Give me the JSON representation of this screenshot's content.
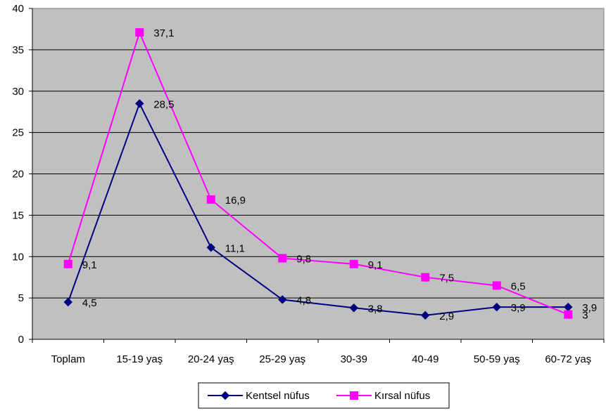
{
  "chart_data": {
    "type": "line",
    "categories": [
      "Toplam",
      "15-19 yaş",
      "20-24 yaş",
      "25-29 yaş",
      "30-39",
      "40-49",
      "50-59 yaş",
      "60-72 yaş"
    ],
    "series": [
      {
        "name": "Kentsel nüfus",
        "color": "#000080",
        "marker": "diamond",
        "values": [
          4.5,
          28.5,
          11.1,
          4.8,
          3.8,
          2.9,
          3.9,
          3.9
        ],
        "labels": [
          "4,5",
          "28,5",
          "11,1",
          "4,8",
          "3,8",
          "2,9",
          "3,9",
          "3,9"
        ]
      },
      {
        "name": "Kırsal nüfus",
        "color": "#FF00FF",
        "marker": "square",
        "values": [
          9.1,
          37.1,
          16.9,
          9.8,
          9.1,
          7.5,
          6.5,
          3.0
        ],
        "labels": [
          "9,1",
          "37,1",
          "16,9",
          "9,8",
          "9,1",
          "7,5",
          "6,5",
          "3"
        ]
      }
    ],
    "yticks": [
      "0",
      "5",
      "10",
      "15",
      "20",
      "25",
      "30",
      "35",
      "40"
    ],
    "ylim": [
      0,
      40
    ],
    "ystep": 5,
    "grid": true,
    "plot_background": "#C0C0C0",
    "legend_position": "bottom",
    "title": "",
    "xlabel": "",
    "ylabel": ""
  }
}
